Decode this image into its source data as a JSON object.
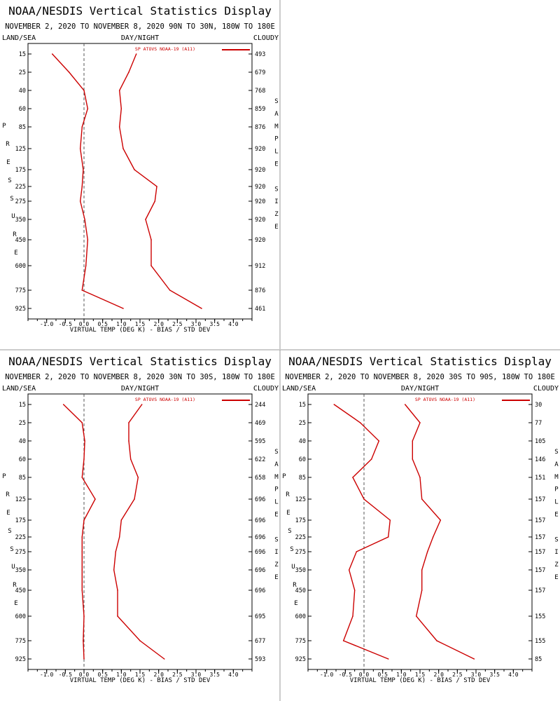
{
  "colors": {
    "background": "#ffffff",
    "text": "#000000",
    "curve": "#cc0000",
    "divider": "#9a9a9a"
  },
  "labels": {
    "title": "NOAA/NESDIS Vertical Statistics Display",
    "land_sea": "LAND/SEA",
    "day_night": "DAY/NIGHT",
    "cloudy": "CLOUDY",
    "left_vertical": "PRESSURE",
    "right_vertical": "SAMPLE SIZE",
    "x_axis": "VIRTUAL TEMP (DEG K) - BIAS / STD DEV",
    "legend": "SP ATOVS NOAA-19 (A11)"
  },
  "x_ticks": [
    -1.0,
    -0.5,
    0.0,
    0.5,
    1.0,
    1.5,
    2.0,
    2.5,
    3.0,
    3.5,
    4.0
  ],
  "x_tick_labels": [
    "-1.0",
    "-0.5",
    "0.0",
    "0.5",
    "1.0",
    "1.5",
    "2.0",
    "2.5",
    "3.0",
    "3.5",
    "4.0"
  ],
  "chart_data": [
    {
      "type": "line",
      "subtitle": "NOVEMBER 2, 2020 TO NOVEMBER 8, 2020 90N TO 30N, 180W TO 180E",
      "pressure_levels": [
        "15",
        "25",
        "40",
        "60",
        "85",
        "125",
        "175",
        "225",
        "275",
        "350",
        "450",
        "600",
        "775",
        "925"
      ],
      "sample_size": [
        "493",
        "679",
        "768",
        "859",
        "876",
        "920",
        "920",
        "920",
        "920",
        "920",
        "920",
        "912",
        "876",
        "461"
      ],
      "xlim": [
        -1.5,
        4.5
      ],
      "series": [
        {
          "role": "bias",
          "values": [
            -0.85,
            -0.4,
            0.0,
            0.1,
            -0.05,
            -0.1,
            -0.02,
            -0.05,
            -0.1,
            0.02,
            0.1,
            0.05,
            -0.05,
            1.05
          ]
        },
        {
          "role": "std_dev",
          "values": [
            1.4,
            1.2,
            0.95,
            1.0,
            0.95,
            1.05,
            1.35,
            1.95,
            1.9,
            1.65,
            1.8,
            1.8,
            2.3,
            3.15
          ]
        }
      ]
    },
    {
      "type": "line",
      "subtitle": "NOVEMBER 2, 2020 TO NOVEMBER 8, 2020 30N TO 30S, 180W TO 180E",
      "pressure_levels": [
        "15",
        "25",
        "40",
        "60",
        "85",
        "125",
        "175",
        "225",
        "275",
        "350",
        "450",
        "600",
        "775",
        "925"
      ],
      "sample_size": [
        "244",
        "469",
        "595",
        "622",
        "658",
        "696",
        "696",
        "696",
        "696",
        "696",
        "696",
        "695",
        "677",
        "593"
      ],
      "xlim": [
        -1.5,
        4.5
      ],
      "series": [
        {
          "role": "bias",
          "values": [
            -0.55,
            -0.05,
            0.02,
            0.0,
            -0.05,
            0.3,
            0.0,
            -0.05,
            -0.05,
            -0.05,
            -0.05,
            0.0,
            -0.02,
            0.0
          ]
        },
        {
          "role": "std_dev",
          "values": [
            1.55,
            1.2,
            1.2,
            1.25,
            1.45,
            1.35,
            1.0,
            0.95,
            0.85,
            0.8,
            0.9,
            0.9,
            1.5,
            2.15
          ]
        }
      ]
    },
    {
      "type": "line",
      "subtitle": "NOVEMBER 2, 2020 TO NOVEMBER 8, 2020 30S TO 90S, 180W TO 180E",
      "pressure_levels": [
        "15",
        "25",
        "40",
        "60",
        "85",
        "125",
        "175",
        "225",
        "275",
        "350",
        "450",
        "600",
        "775",
        "925"
      ],
      "sample_size": [
        "30",
        "77",
        "105",
        "146",
        "151",
        "157",
        "157",
        "157",
        "157",
        "157",
        "157",
        "155",
        "155",
        "85"
      ],
      "xlim": [
        -1.5,
        4.5
      ],
      "series": [
        {
          "role": "bias",
          "values": [
            -0.8,
            -0.1,
            0.4,
            0.2,
            -0.3,
            0.0,
            0.7,
            0.65,
            -0.2,
            -0.4,
            -0.25,
            -0.3,
            -0.55,
            0.65
          ]
        },
        {
          "role": "std_dev",
          "values": [
            1.1,
            1.5,
            1.3,
            1.3,
            1.5,
            1.55,
            2.05,
            1.85,
            1.7,
            1.55,
            1.55,
            1.4,
            1.95,
            2.95
          ]
        }
      ]
    }
  ]
}
